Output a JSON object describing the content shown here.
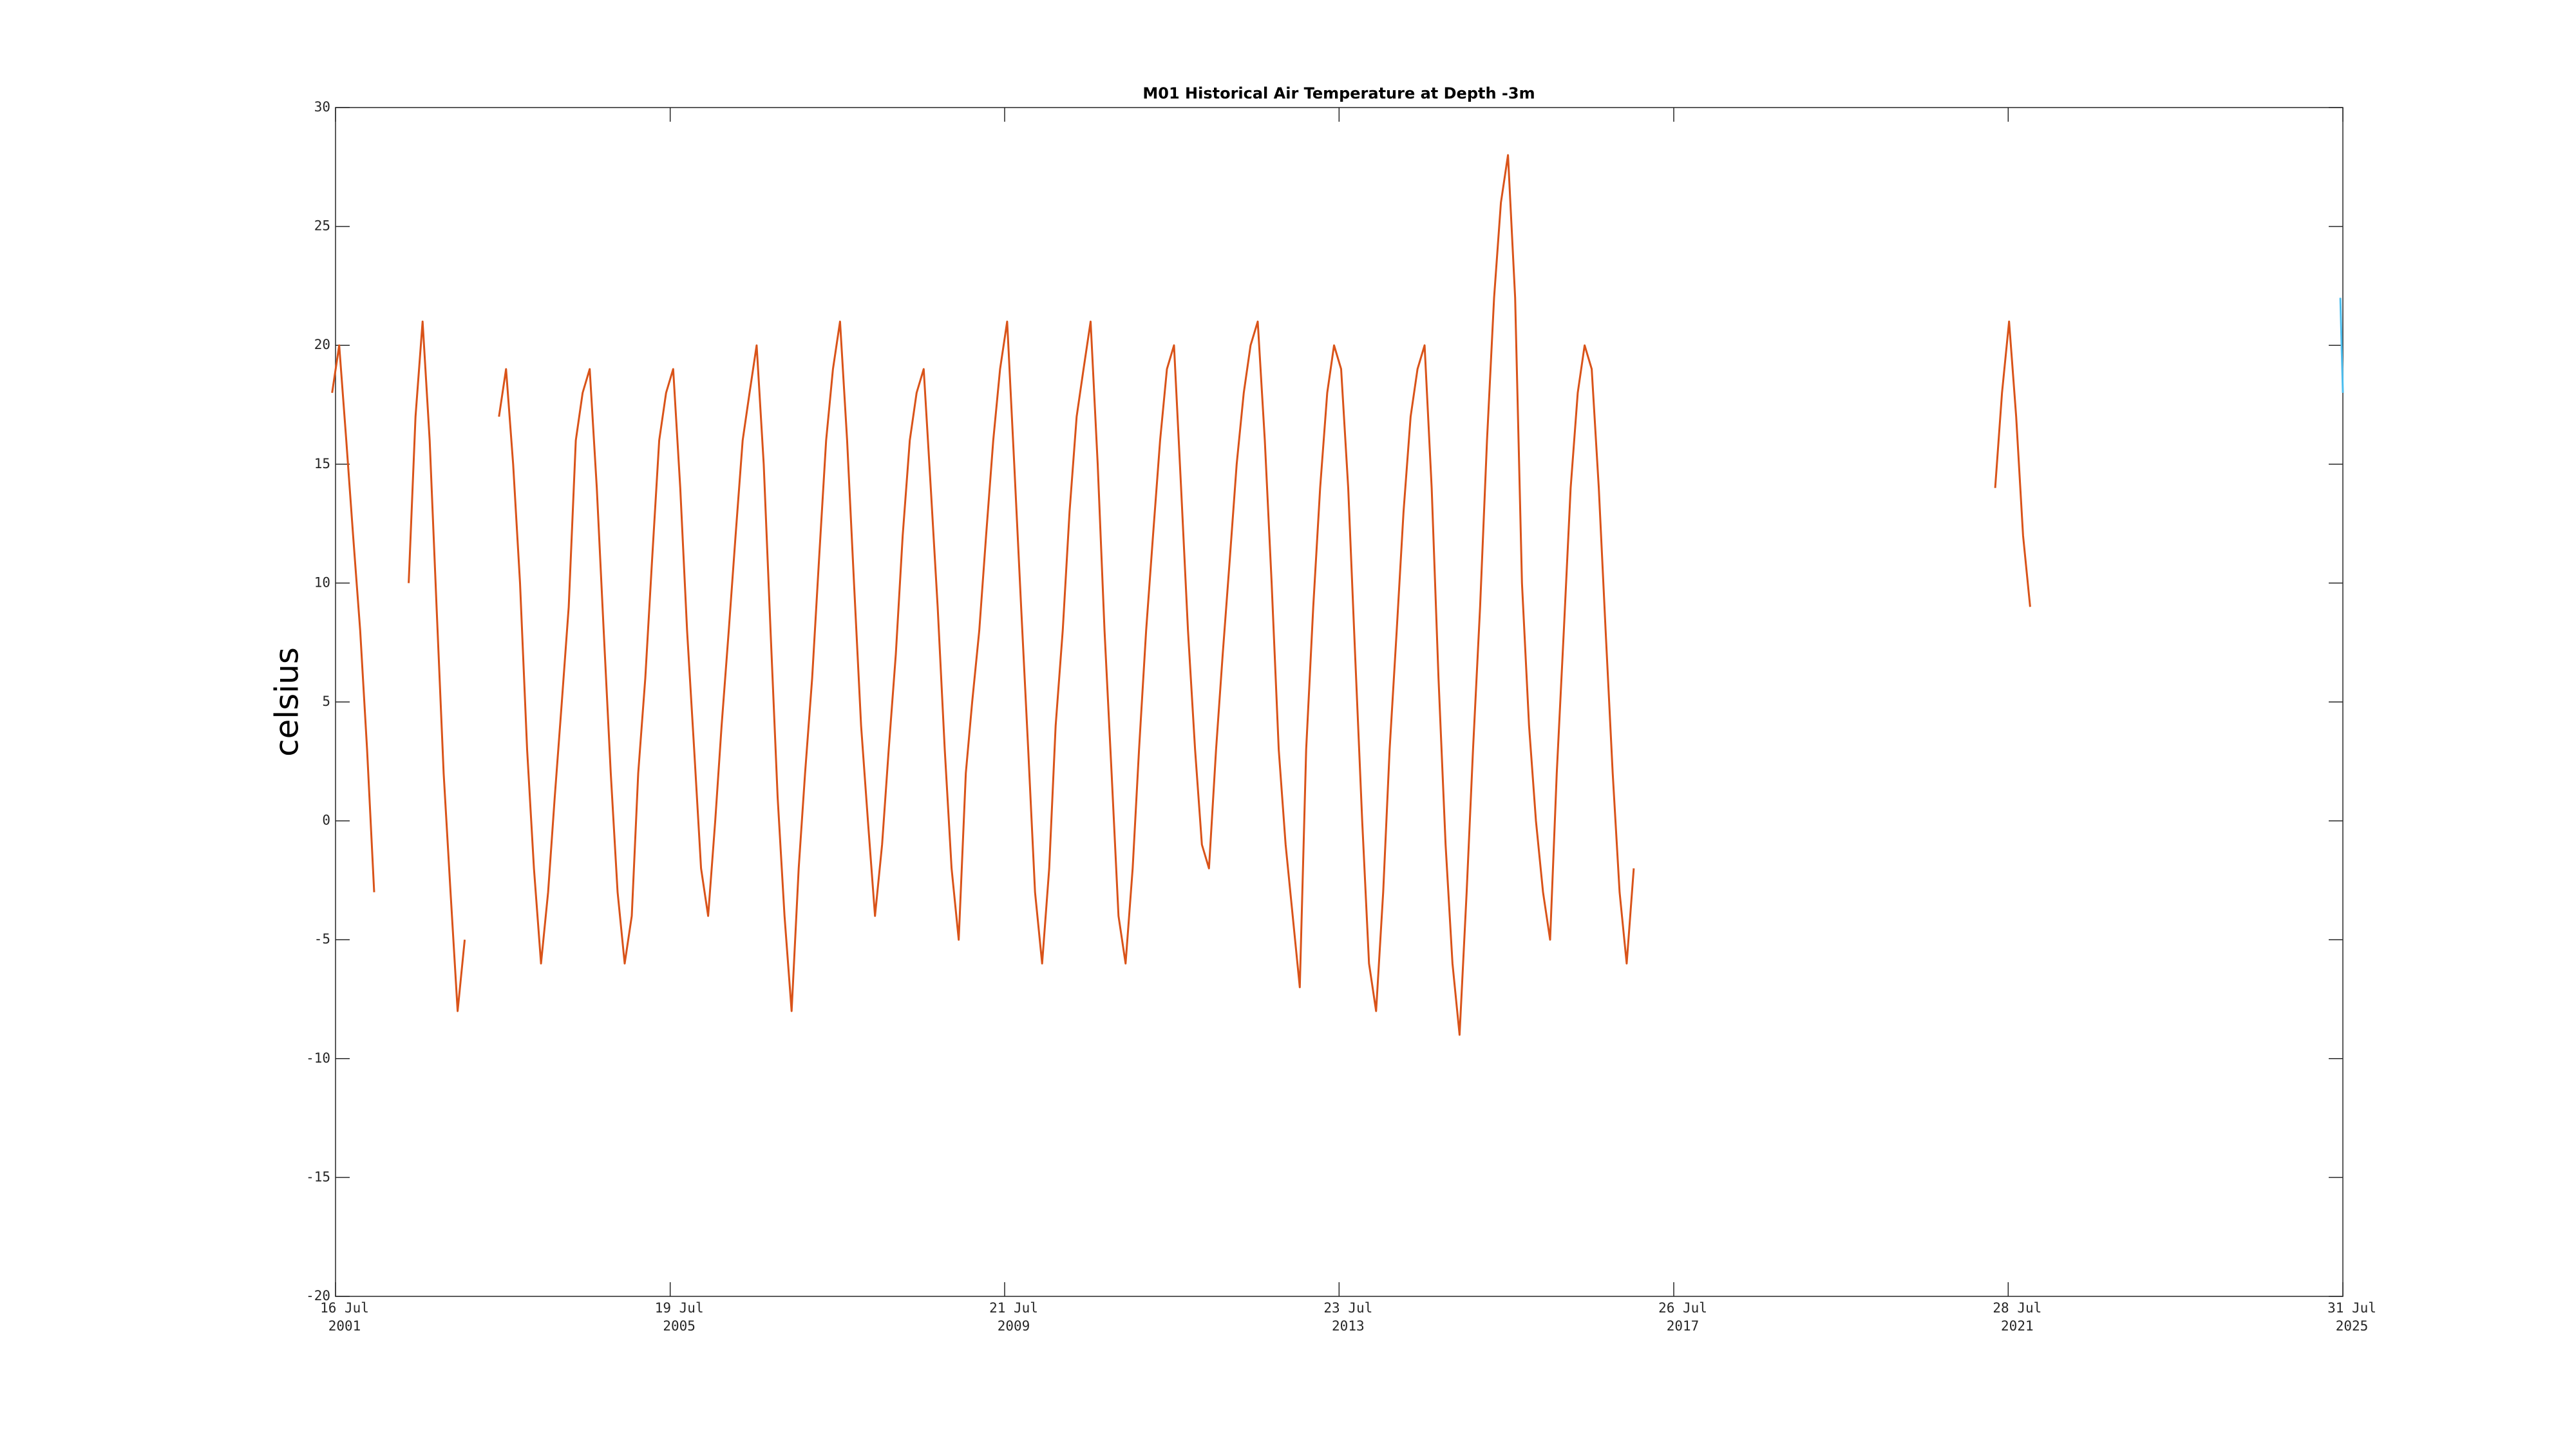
{
  "chart_data": {
    "type": "line",
    "title": "M01 Historical Air Temperature at Depth -3m",
    "y_label": "celsius",
    "ylim": [
      -20,
      30
    ],
    "yticks": [
      -20,
      -15,
      -10,
      -5,
      0,
      5,
      10,
      15,
      20,
      25,
      30
    ],
    "xlim": [
      "2001-07-16",
      "2025-07-31"
    ],
    "xticks": [
      {
        "value": "2001-07-16",
        "label": [
          "16 Jul",
          "2001"
        ]
      },
      {
        "value": "2005-07-19",
        "label": [
          "19 Jul",
          "2005"
        ]
      },
      {
        "value": "2009-07-21",
        "label": [
          "21 Jul",
          "2009"
        ]
      },
      {
        "value": "2013-07-23",
        "label": [
          "23 Jul",
          "2013"
        ]
      },
      {
        "value": "2017-07-26",
        "label": [
          "26 Jul",
          "2017"
        ]
      },
      {
        "value": "2021-07-28",
        "label": [
          "28 Jul",
          "2021"
        ]
      },
      {
        "value": "2025-07-31",
        "label": [
          "31 Jul",
          "2025"
        ]
      }
    ],
    "grid": false,
    "series": [
      {
        "color": "#d95319",
        "x": [
          "2001-07",
          "2001-08",
          "2001-09",
          "2001-10",
          "2001-11",
          "2001-12",
          "2002-01",
          "2002-03",
          "2002-06",
          "2002-07",
          "2002-08",
          "2002-09",
          "2002-10",
          "2002-11",
          "2002-12",
          "2003-01",
          "2003-02",
          "2003-04",
          "2003-07",
          "2003-08",
          "2003-09",
          "2003-10",
          "2003-11",
          "2003-12",
          "2004-01",
          "2004-02",
          "2004-03",
          "2004-04",
          "2004-05",
          "2004-06",
          "2004-07",
          "2004-08",
          "2004-09",
          "2004-10",
          "2004-11",
          "2004-12",
          "2005-01",
          "2005-02",
          "2005-03",
          "2005-04",
          "2005-05",
          "2005-06",
          "2005-07",
          "2005-08",
          "2005-09",
          "2005-10",
          "2005-11",
          "2005-12",
          "2006-01",
          "2006-02",
          "2006-03",
          "2006-04",
          "2006-05",
          "2006-06",
          "2006-07",
          "2006-08",
          "2006-09",
          "2006-10",
          "2006-11",
          "2006-12",
          "2007-01",
          "2007-02",
          "2007-03",
          "2007-04",
          "2007-05",
          "2007-06",
          "2007-07",
          "2007-08",
          "2007-09",
          "2007-10",
          "2007-11",
          "2007-12",
          "2008-01",
          "2008-02",
          "2008-03",
          "2008-04",
          "2008-05",
          "2008-06",
          "2008-07",
          "2008-08",
          "2008-09",
          "2008-10",
          "2008-11",
          "2008-12",
          "2009-01",
          "2009-02",
          "2009-03",
          "2009-04",
          "2009-05",
          "2009-06",
          "2009-07",
          "2009-08",
          "2009-09",
          "2009-10",
          "2009-11",
          "2009-12",
          "2010-01",
          "2010-02",
          "2010-03",
          "2010-04",
          "2010-05",
          "2010-06",
          "2010-07",
          "2010-08",
          "2010-09",
          "2010-10",
          "2010-11",
          "2010-12",
          "2011-01",
          "2011-02",
          "2011-03",
          "2011-04",
          "2011-05",
          "2011-06",
          "2011-07",
          "2011-08",
          "2011-09",
          "2011-10",
          "2011-11",
          "2011-12",
          "2012-01",
          "2012-02",
          "2012-03",
          "2012-04",
          "2012-05",
          "2012-06",
          "2012-07",
          "2012-08",
          "2012-09",
          "2012-10",
          "2012-11",
          "2012-12",
          "2013-01",
          "2013-02",
          "2013-03",
          "2013-04",
          "2013-05",
          "2013-06",
          "2013-07",
          "2013-08",
          "2013-09",
          "2013-10",
          "2013-11",
          "2013-12",
          "2014-01",
          "2014-02",
          "2014-03",
          "2014-04",
          "2014-05",
          "2014-06",
          "2014-07",
          "2014-08",
          "2014-09",
          "2014-10",
          "2014-11",
          "2014-12",
          "2015-01",
          "2015-02",
          "2015-03",
          "2015-04",
          "2015-05",
          "2015-06",
          "2015-07",
          "2015-08",
          "2015-09",
          "2015-10",
          "2015-11",
          "2015-12",
          "2016-01",
          "2016-02",
          "2016-03",
          "2016-04",
          "2016-05",
          "2016-06",
          "2016-07",
          "2016-08",
          "2016-09",
          "2016-10",
          "2016-11",
          "2016-12",
          "2017-01",
          "2017-02",
          "2019-01",
          "2021-06",
          "2021-07",
          "2021-08",
          "2021-09",
          "2021-10",
          "2021-11"
        ],
        "values": [
          18,
          20,
          16,
          12,
          8,
          3,
          -3,
          null,
          10,
          17,
          21,
          16,
          9,
          2,
          -3,
          -8,
          -5,
          null,
          17,
          19,
          15,
          10,
          3,
          -2,
          -6,
          -3,
          1,
          5,
          9,
          16,
          18,
          19,
          14,
          8,
          2,
          -3,
          -6,
          -4,
          2,
          6,
          11,
          16,
          18,
          19,
          14,
          8,
          3,
          -2,
          -4,
          0,
          4,
          8,
          12,
          16,
          18,
          20,
          15,
          8,
          1,
          -4,
          -8,
          -2,
          2,
          6,
          11,
          16,
          19,
          21,
          16,
          10,
          4,
          0,
          -4,
          -1,
          3,
          7,
          12,
          16,
          18,
          19,
          14,
          9,
          3,
          -2,
          -5,
          2,
          5,
          8,
          12,
          16,
          19,
          21,
          15,
          9,
          3,
          -3,
          -6,
          -2,
          4,
          8,
          13,
          17,
          19,
          21,
          15,
          8,
          2,
          -4,
          -6,
          -2,
          3,
          8,
          12,
          16,
          19,
          20,
          14,
          8,
          3,
          -1,
          -2,
          3,
          7,
          11,
          15,
          18,
          20,
          21,
          16,
          10,
          3,
          -1,
          -4,
          -7,
          3,
          9,
          14,
          18,
          20,
          19,
          14,
          7,
          0,
          -6,
          -8,
          -3,
          3,
          8,
          13,
          17,
          19,
          20,
          14,
          6,
          -1,
          -6,
          -9,
          -3,
          3,
          9,
          16,
          22,
          26,
          28,
          22,
          10,
          4,
          0,
          -3,
          -5,
          2,
          8,
          14,
          18,
          20,
          19,
          14,
          8,
          2,
          -3,
          -6,
          -2,
          null,
          14,
          18,
          21,
          17,
          12,
          9
        ]
      },
      {
        "color": "#4dbeee",
        "x": [
          "2025-07-20",
          "2025-07-31"
        ],
        "values": [
          22,
          18
        ]
      }
    ]
  }
}
